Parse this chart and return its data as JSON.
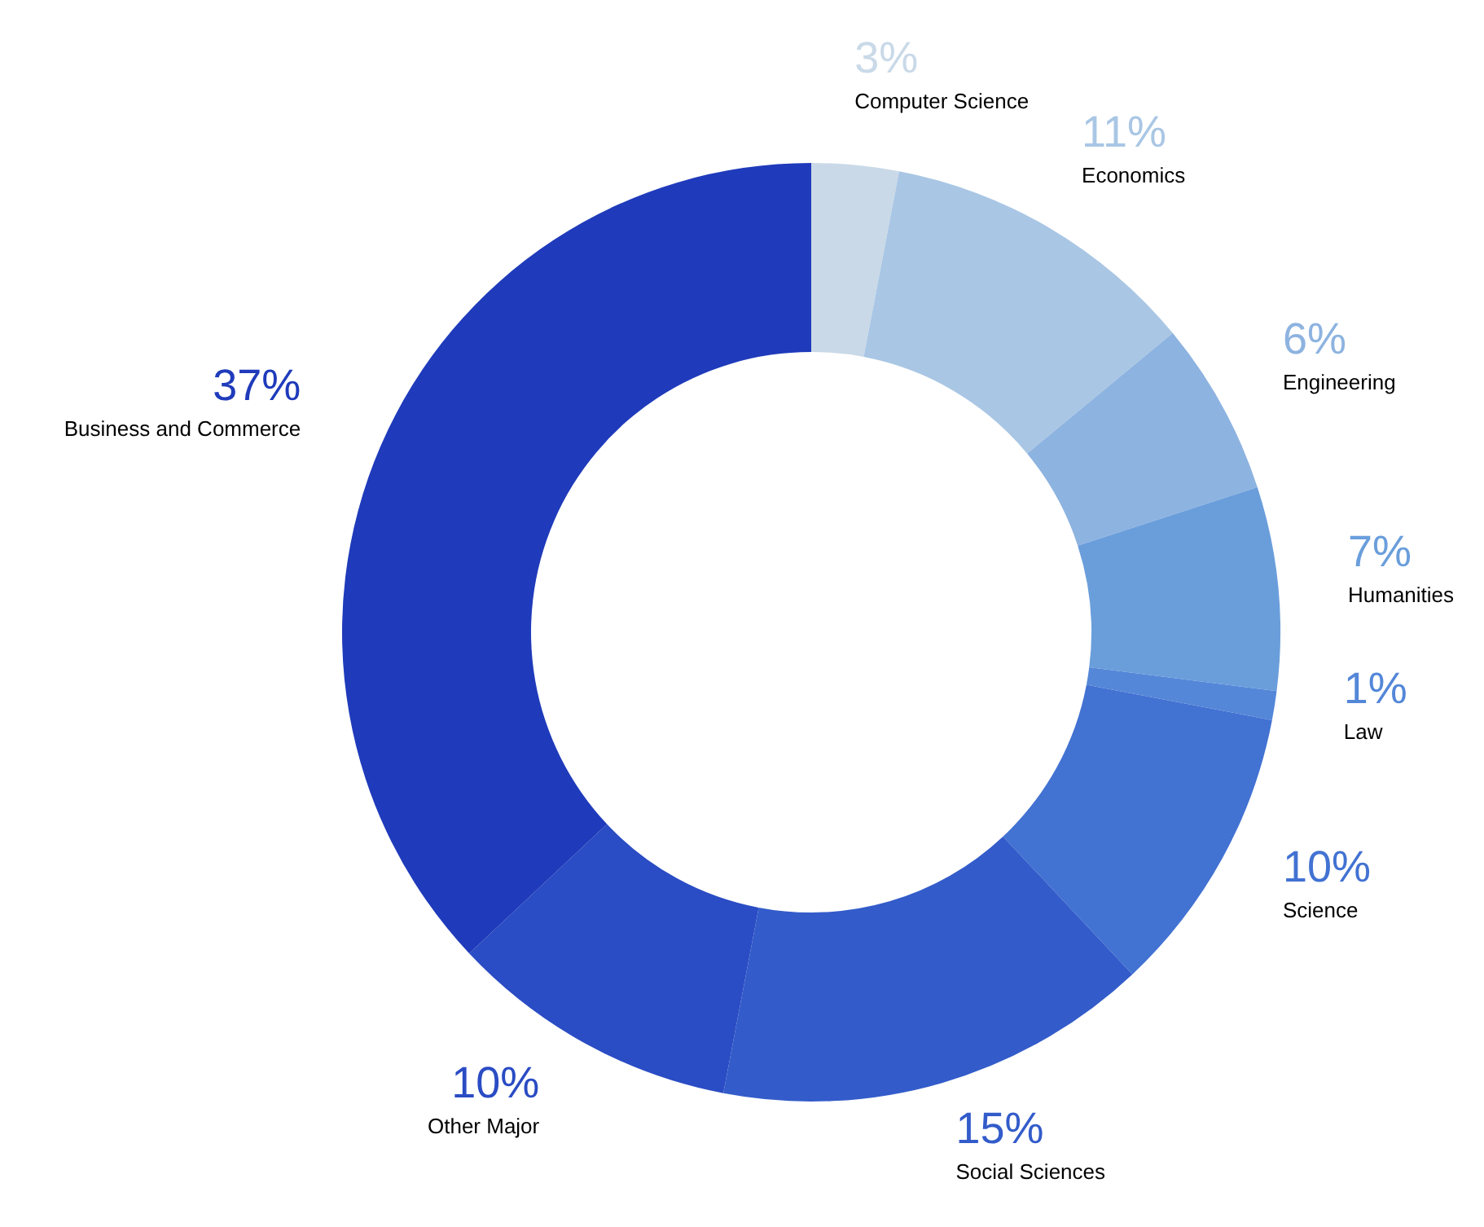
{
  "chart_data": {
    "type": "donut",
    "categories": [
      "Computer Science",
      "Economics",
      "Engineering",
      "Humanities",
      "Law",
      "Science",
      "Social Sciences",
      "Other Major",
      "Business and Commerce"
    ],
    "values": [
      3,
      11,
      6,
      7,
      1,
      10,
      15,
      10,
      37
    ],
    "value_labels": [
      "3%",
      "11%",
      "6%",
      "7%",
      "1%",
      "10%",
      "15%",
      "10%",
      "37%"
    ],
    "colors": [
      "#c9d9e8",
      "#a9c6e4",
      "#8db3e0",
      "#6a9edb",
      "#5487d8",
      "#4272d2",
      "#335cca",
      "#2a4cc4",
      "#1f3bbb"
    ],
    "legend": false
  }
}
